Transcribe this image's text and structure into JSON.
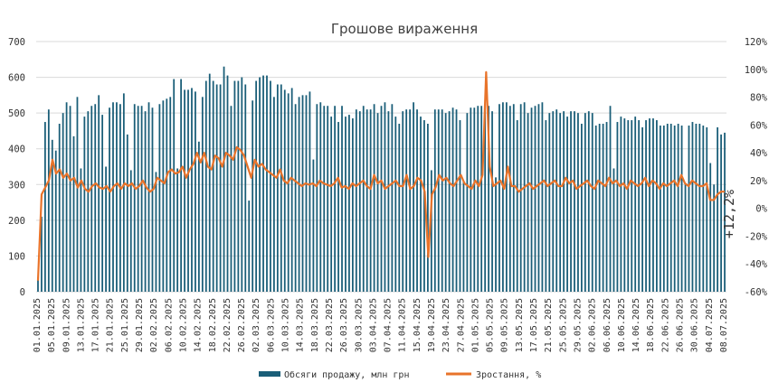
{
  "chart_data": {
    "type": "bar",
    "title": "Грошове  вираження",
    "xlabel": "",
    "ylabel": "",
    "y_left_lim": [
      0,
      700
    ],
    "y_left_ticks": [
      "0",
      "100",
      "200",
      "300",
      "400",
      "500",
      "600",
      "700"
    ],
    "y_right_lim": [
      -60,
      120
    ],
    "y_right_ticks": [
      "-60%",
      "-40%",
      "-20%",
      "0%",
      "20%",
      "40%",
      "60%",
      "80%",
      "100%",
      "120%"
    ],
    "grid": true,
    "legend_position": "bottom",
    "x_start": "01.01.2025",
    "x_end": "09.07.2025",
    "x_tick_labels": [
      "01.01.2025",
      "05.01.2025",
      "09.01.2025",
      "13.01.2025",
      "17.01.2025",
      "21.01.2025",
      "25.01.2025",
      "29.01.2025",
      "02.02.2025",
      "06.02.2025",
      "10.02.2025",
      "14.02.2025",
      "18.02.2025",
      "22.02.2025",
      "26.02.2025",
      "02.03.2025",
      "06.03.2025",
      "10.03.2025",
      "14.03.2025",
      "18.03.2025",
      "22.03.2025",
      "26.03.2025",
      "30.03.2025",
      "03.04.2025",
      "07.04.2025",
      "11.04.2025",
      "15.04.2025",
      "19.04.2025",
      "23.04.2025",
      "27.04.2025",
      "01.05.2025",
      "05.05.2025",
      "09.05.2025",
      "13.05.2025",
      "17.05.2025",
      "21.05.2025",
      "25.05.2025",
      "29.05.2025",
      "02.06.2025",
      "06.06.2025",
      "10.06.2025",
      "14.06.2025",
      "18.06.2025",
      "22.06.2025",
      "26.06.2025",
      "30.06.2025",
      "04.07.2025",
      "08.07.2025"
    ],
    "series": [
      {
        "name": "Обсяги продажу, млн грн",
        "axis": "left",
        "type": "bar",
        "color": "#1a5e78",
        "values": [
          40,
          210,
          475,
          510,
          425,
          395,
          470,
          500,
          530,
          520,
          435,
          545,
          345,
          490,
          505,
          520,
          525,
          550,
          495,
          350,
          515,
          530,
          530,
          525,
          555,
          440,
          340,
          525,
          520,
          520,
          505,
          530,
          515,
          335,
          525,
          535,
          540,
          545,
          595,
          345,
          595,
          565,
          565,
          570,
          560,
          420,
          545,
          590,
          610,
          590,
          580,
          580,
          630,
          605,
          520,
          590,
          590,
          600,
          580,
          255,
          535,
          590,
          600,
          605,
          605,
          590,
          545,
          580,
          580,
          565,
          555,
          570,
          525,
          545,
          550,
          550,
          560,
          370,
          525,
          530,
          520,
          520,
          490,
          520,
          475,
          520,
          490,
          495,
          485,
          510,
          505,
          520,
          510,
          510,
          525,
          500,
          520,
          530,
          505,
          525,
          490,
          470,
          505,
          510,
          510,
          530,
          510,
          490,
          480,
          470,
          340,
          510,
          510,
          510,
          500,
          505,
          515,
          510,
          480,
          310,
          500,
          515,
          515,
          520,
          520,
          525,
          520,
          505,
          320,
          525,
          530,
          530,
          520,
          525,
          480,
          525,
          530,
          500,
          515,
          520,
          525,
          530,
          480,
          500,
          505,
          510,
          500,
          505,
          490,
          505,
          505,
          500,
          470,
          500,
          505,
          500,
          465,
          470,
          470,
          475,
          520,
          345,
          475,
          490,
          485,
          480,
          480,
          490,
          480,
          460,
          480,
          485,
          485,
          480,
          465,
          465,
          470,
          470,
          465,
          470,
          465,
          300,
          465,
          475,
          470,
          470,
          465,
          460,
          360,
          300,
          460,
          440,
          445
        ]
      },
      {
        "name": "Зростання, %",
        "axis": "right",
        "type": "line",
        "color": "#e8732a",
        "values": [
          -52,
          10,
          15,
          20,
          35,
          25,
          28,
          22,
          25,
          20,
          22,
          15,
          20,
          14,
          12,
          16,
          18,
          15,
          14,
          16,
          12,
          16,
          18,
          14,
          18,
          16,
          18,
          14,
          16,
          20,
          15,
          12,
          14,
          22,
          20,
          18,
          26,
          28,
          25,
          26,
          30,
          22,
          28,
          32,
          40,
          33,
          40,
          30,
          28,
          38,
          36,
          30,
          40,
          38,
          35,
          44,
          42,
          38,
          30,
          22,
          35,
          30,
          32,
          28,
          26,
          24,
          22,
          28,
          20,
          18,
          22,
          20,
          18,
          16,
          18,
          17,
          18,
          16,
          20,
          18,
          17,
          16,
          18,
          22,
          15,
          16,
          14,
          18,
          16,
          18,
          20,
          16,
          14,
          24,
          18,
          20,
          14,
          16,
          18,
          20,
          16,
          16,
          24,
          14,
          16,
          22,
          20,
          12,
          -35,
          10,
          15,
          24,
          20,
          22,
          18,
          16,
          20,
          24,
          18,
          16,
          14,
          20,
          16,
          24,
          98,
          30,
          16,
          18,
          20,
          14,
          30,
          16,
          16,
          12,
          14,
          16,
          18,
          14,
          16,
          18,
          20,
          16,
          18,
          20,
          16,
          16,
          22,
          18,
          20,
          14,
          16,
          18,
          20,
          16,
          14,
          20,
          18,
          16,
          22,
          18,
          20,
          16,
          18,
          14,
          20,
          18,
          16,
          18,
          22,
          16,
          20,
          18,
          14,
          18,
          16,
          18,
          20,
          16,
          24,
          18,
          16,
          20,
          18,
          16,
          16,
          18,
          6,
          6,
          10,
          12,
          12
        ]
      }
    ],
    "annotations": [
      "+12,2%"
    ],
    "colors": {
      "bars": "#1a5e78",
      "line": "#e8732a",
      "grid": "#d9d9d9"
    }
  }
}
